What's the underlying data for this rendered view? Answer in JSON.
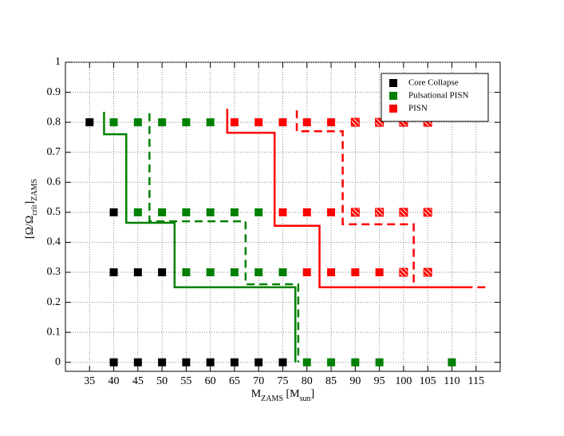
{
  "chart_data": {
    "type": "scatter",
    "xlabel": [
      "M",
      "ZAMS",
      " [M",
      "sun",
      "]"
    ],
    "ylabel": [
      "[Ω/Ω",
      "crit",
      "]",
      "ZAMS"
    ],
    "xlim": [
      30,
      120
    ],
    "ylim": [
      -0.03,
      1
    ],
    "xticks": [
      35,
      40,
      45,
      50,
      55,
      60,
      65,
      70,
      75,
      80,
      85,
      90,
      95,
      100,
      105,
      110,
      115
    ],
    "yticks": [
      0,
      0.1,
      0.2,
      0.3,
      0.4,
      0.5,
      0.6,
      0.7,
      0.8,
      0.9,
      1
    ],
    "grid": true,
    "legend": "upper right",
    "series": [
      {
        "name": "Core Collapse",
        "color": "#000000",
        "x": [
          35,
          40,
          40,
          45,
          50,
          40,
          45,
          50,
          55,
          60,
          65,
          70,
          75
        ],
        "values": [
          0.8,
          0.5,
          0.3,
          0.3,
          0.3,
          0,
          0,
          0,
          0,
          0,
          0,
          0,
          0
        ]
      },
      {
        "name": "Pulsational PISN",
        "color": "#008000",
        "x": [
          40,
          45,
          50,
          55,
          60,
          45,
          50,
          55,
          60,
          65,
          70,
          55,
          60,
          65,
          70,
          75,
          80,
          85,
          90,
          95,
          110
        ],
        "values": [
          0.8,
          0.8,
          0.8,
          0.8,
          0.8,
          0.5,
          0.5,
          0.5,
          0.5,
          0.5,
          0.5,
          0.3,
          0.3,
          0.3,
          0.3,
          0.3,
          0,
          0,
          0,
          0,
          0
        ]
      },
      {
        "name": "PISN",
        "color": "#ff0000",
        "x": [
          65,
          70,
          75,
          80,
          85,
          90,
          95,
          100,
          105,
          75,
          80,
          85,
          90,
          95,
          100,
          105,
          80,
          85,
          90,
          95,
          100,
          105
        ],
        "values": [
          0.8,
          0.8,
          0.8,
          0.8,
          0.8,
          0.8,
          0.8,
          0.8,
          0.8,
          0.5,
          0.5,
          0.5,
          0.5,
          0.5,
          0.5,
          0.5,
          0.3,
          0.3,
          0.3,
          0.3,
          0.3,
          0.3
        ],
        "hatched": [
          false,
          false,
          false,
          false,
          false,
          true,
          true,
          true,
          true,
          false,
          false,
          false,
          true,
          true,
          true,
          true,
          false,
          false,
          false,
          false,
          true,
          true
        ]
      }
    ],
    "lines": [
      {
        "color": "#008000",
        "style": "solid",
        "x": [
          38,
          38,
          42.6,
          42.6,
          52.6,
          52.6,
          77.6,
          77.6
        ],
        "values": [
          0.835,
          0.76,
          0.76,
          0.465,
          0.465,
          0.25,
          0.25,
          0
        ]
      },
      {
        "color": "#008000",
        "style": "dashed",
        "x": [
          47.4,
          47.4,
          67.3,
          67.3,
          78.2,
          78.2
        ],
        "values": [
          0.83,
          0.47,
          0.47,
          0.26,
          0.26,
          0
        ]
      },
      {
        "color": "#ff0000",
        "style": "solid",
        "x": [
          63.5,
          63.5,
          73.3,
          73.3,
          82.6,
          82.6,
          114
        ],
        "values": [
          0.845,
          0.765,
          0.765,
          0.455,
          0.455,
          0.25,
          0.25
        ]
      },
      {
        "color": "#ff0000",
        "style": "dashed",
        "x": [
          77.9,
          77.9,
          87.4,
          87.4,
          102.1,
          102.1,
          117
        ],
        "values": [
          0.84,
          0.77,
          0.77,
          0.46,
          0.46,
          0.25,
          0.25
        ]
      }
    ]
  }
}
